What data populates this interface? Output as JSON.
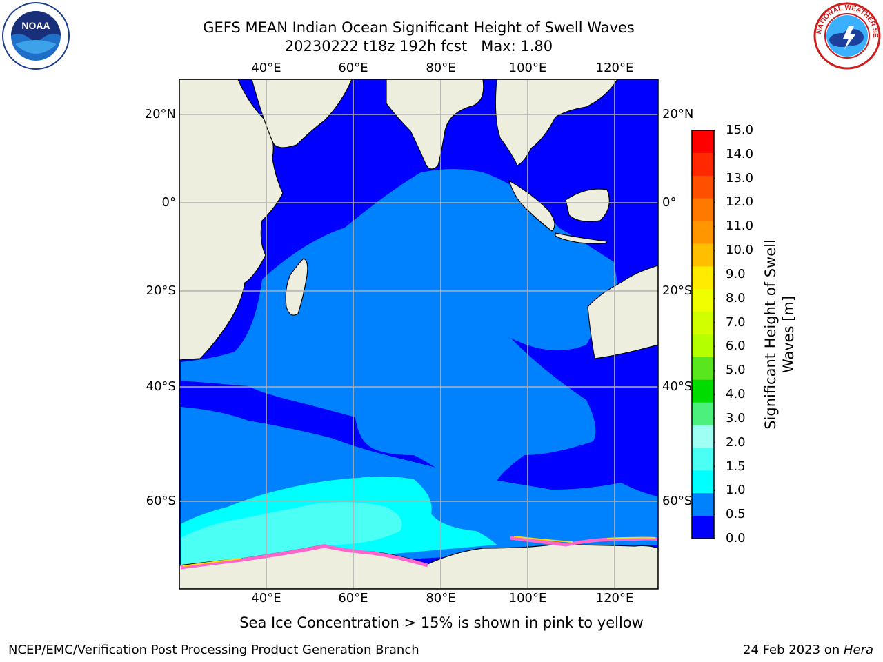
{
  "header": {
    "title_line1": "GEFS MEAN Indian Ocean Significant Height of Swell Waves",
    "title_line2": "20230222 t18z 192h fcst   Max: 1.80"
  },
  "logos": {
    "left": {
      "name": "noaa-logo",
      "text": "NOAA"
    },
    "right": {
      "name": "nws-logo",
      "text": "NATIONAL WEATHER SERVICE"
    }
  },
  "map": {
    "lon_ticks_top": [
      "40°E",
      "60°E",
      "80°E",
      "100°E",
      "120°E"
    ],
    "lon_ticks_bottom": [
      "40°E",
      "60°E",
      "80°E",
      "100°E",
      "120°E"
    ],
    "lat_ticks_left": [
      "20°N",
      "0°",
      "20°S",
      "40°S",
      "60°S"
    ],
    "lat_ticks_right": [
      "20°N",
      "0°",
      "20°S",
      "40°S",
      "60°S"
    ],
    "land_color": "#eeeede",
    "grid_color": "#b0b0b0"
  },
  "colorbar": {
    "label": "Significant Height of Swell\nWaves [m]",
    "ticks": [
      "15.0",
      "14.0",
      "13.0",
      "12.0",
      "11.0",
      "10.0",
      "9.0",
      "8.0",
      "7.0",
      "6.0",
      "5.0",
      "4.0",
      "3.0",
      "2.0",
      "1.5",
      "1.0",
      "0.5",
      "0.0"
    ],
    "colors_top_to_bottom": [
      "#ff0000",
      "#ff2800",
      "#ff5000",
      "#ff7800",
      "#ff9600",
      "#ffbe00",
      "#ffeb00",
      "#f0ff00",
      "#d2ff00",
      "#b4ff00",
      "#5ae61e",
      "#00dc00",
      "#4bf07d",
      "#a0fff5",
      "#4bfff5",
      "#00ffff",
      "#0082ff",
      "#0000ff"
    ]
  },
  "footer": {
    "caption": "Sea Ice Concentration > 15% is shown in pink to yellow",
    "credit": "NCEP/EMC/Verification Post Processing Product Generation Branch",
    "date": "24 Feb 2023 on ",
    "system": "Hera"
  }
}
